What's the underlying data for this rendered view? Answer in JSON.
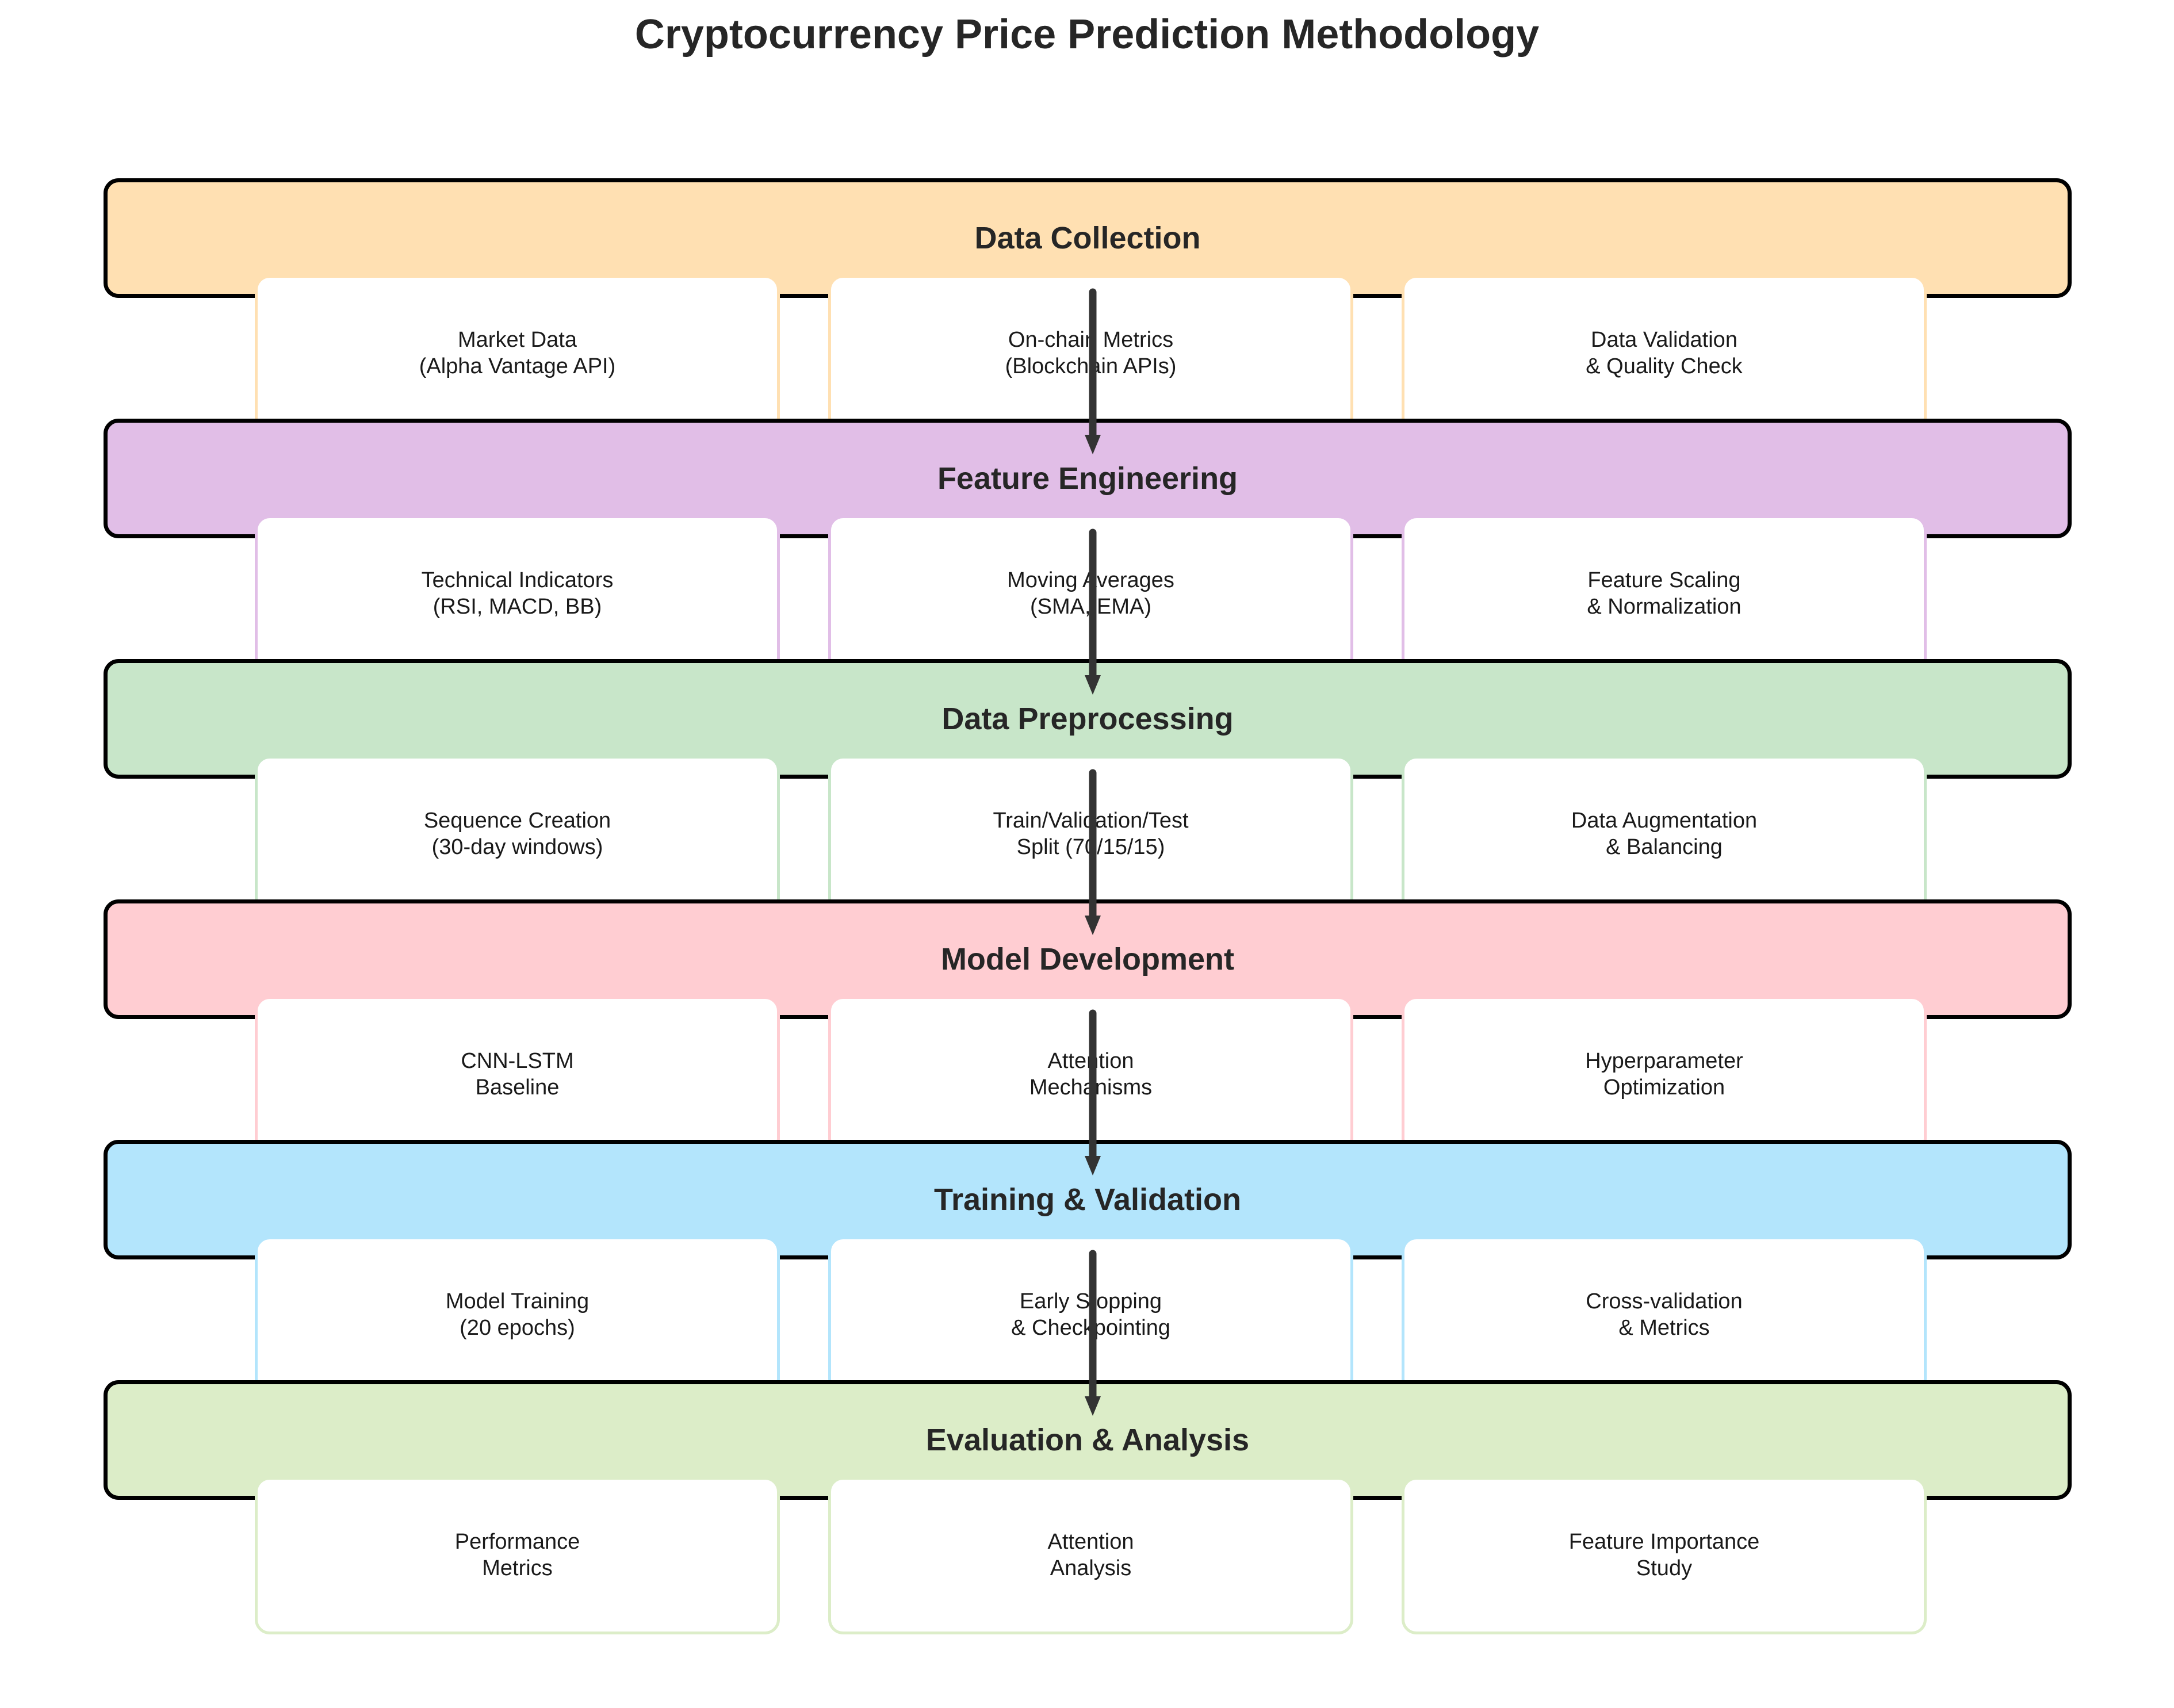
{
  "title": "Cryptocurrency Price Prediction Methodology",
  "stages": [
    {
      "name": "Data Collection",
      "color": "#FFE0B2",
      "items": [
        "Market Data\n(Alpha Vantage API)",
        "On-chain Metrics\n(Blockchain APIs)",
        "Data Validation\n& Quality Check"
      ]
    },
    {
      "name": "Feature Engineering",
      "color": "#E1BEE7",
      "items": [
        "Technical Indicators\n(RSI, MACD, BB)",
        "Moving Averages\n(SMA, EMA)",
        "Feature Scaling\n& Normalization"
      ]
    },
    {
      "name": "Data Preprocessing",
      "color": "#C8E6C9",
      "items": [
        "Sequence Creation\n(30-day windows)",
        "Train/Validation/Test\nSplit (70/15/15)",
        "Data Augmentation\n& Balancing"
      ]
    },
    {
      "name": "Model Development",
      "color": "#FFCDD2",
      "items": [
        "CNN-LSTM\nBaseline",
        "Attention\nMechanisms",
        "Hyperparameter\nOptimization"
      ]
    },
    {
      "name": "Training & Validation",
      "color": "#B3E5FC",
      "items": [
        "Model Training\n(20 epochs)",
        "Early Stopping\n& Checkpointing",
        "Cross-validation\n& Metrics"
      ]
    },
    {
      "name": "Evaluation & Analysis",
      "color": "#DCEDC8",
      "items": [
        "Performance\nMetrics",
        "Attention\nAnalysis",
        "Feature Importance\nStudy"
      ]
    }
  ],
  "arrow_color": "#333333"
}
